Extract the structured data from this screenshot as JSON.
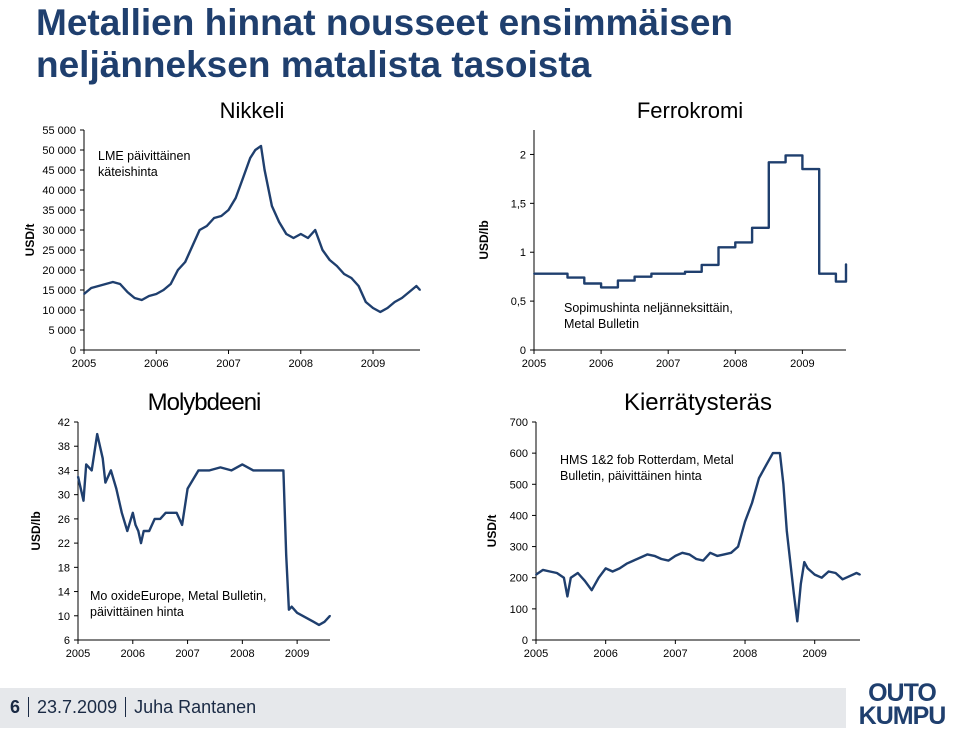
{
  "page": {
    "title_line1": "Metallien hinnat nousseet ensimmäisen",
    "title_line2": "neljänneksen matalista tasoista"
  },
  "chart_data": [
    {
      "type": "line",
      "title": "Nikkeli",
      "ylabel": "USD/t",
      "annotation": [
        "LME päivittäinen",
        "käteishinta"
      ],
      "yticks": [
        0,
        5000,
        10000,
        15000,
        20000,
        25000,
        30000,
        35000,
        40000,
        45000,
        50000,
        55000
      ],
      "ytick_labels": [
        "0",
        "5 000",
        "10 000",
        "15 000",
        "20 000",
        "25 000",
        "30 000",
        "35 000",
        "40 000",
        "45 000",
        "50 000",
        "55 000"
      ],
      "xticks": [
        "2005",
        "2006",
        "2007",
        "2008",
        "2009"
      ],
      "ylim": [
        0,
        55000
      ],
      "xlim": [
        2005.0,
        2009.65
      ],
      "color": "#1f3f6e",
      "x": [
        2005.0,
        2005.1,
        2005.2,
        2005.3,
        2005.4,
        2005.5,
        2005.6,
        2005.7,
        2005.8,
        2005.9,
        2006.0,
        2006.1,
        2006.2,
        2006.3,
        2006.4,
        2006.5,
        2006.6,
        2006.7,
        2006.8,
        2006.9,
        2007.0,
        2007.1,
        2007.2,
        2007.3,
        2007.37,
        2007.45,
        2007.5,
        2007.6,
        2007.7,
        2007.8,
        2007.9,
        2008.0,
        2008.1,
        2008.2,
        2008.3,
        2008.4,
        2008.5,
        2008.6,
        2008.7,
        2008.8,
        2008.9,
        2009.0,
        2009.1,
        2009.2,
        2009.3,
        2009.4,
        2009.5,
        2009.6,
        2009.65
      ],
      "y": [
        14000,
        15500,
        16000,
        16500,
        17000,
        16500,
        14500,
        13000,
        12500,
        13500,
        14000,
        15000,
        16500,
        20000,
        22000,
        26000,
        30000,
        31000,
        33000,
        33500,
        35000,
        38000,
        43000,
        48000,
        50000,
        51000,
        45000,
        36000,
        32000,
        29000,
        28000,
        29000,
        28000,
        30000,
        25000,
        22500,
        21000,
        19000,
        18000,
        16000,
        12000,
        10500,
        9500,
        10500,
        12000,
        13000,
        14500,
        16000,
        15000
      ]
    },
    {
      "type": "line",
      "title": "Ferrokromi",
      "ylabel": "USD/lb",
      "annotation": [
        "Sopimushinta neljänneksittäin,",
        "Metal Bulletin"
      ],
      "yticks": [
        0,
        0.5,
        1,
        1.5,
        2
      ],
      "ytick_labels": [
        "0",
        "0,5",
        "1",
        "1,5",
        "2"
      ],
      "xticks": [
        "2005",
        "2006",
        "2007",
        "2008",
        "2009"
      ],
      "ylim": [
        0,
        2.25
      ],
      "xlim": [
        2005.0,
        2009.65
      ],
      "color": "#1f3f6e",
      "step": true,
      "x": [
        2005.0,
        2005.25,
        2005.5,
        2005.75,
        2006.0,
        2006.25,
        2006.5,
        2006.75,
        2007.0,
        2007.25,
        2007.5,
        2007.75,
        2008.0,
        2008.25,
        2008.5,
        2008.75,
        2009.0,
        2009.25,
        2009.5,
        2009.65
      ],
      "y": [
        0.78,
        0.78,
        0.74,
        0.68,
        0.64,
        0.71,
        0.75,
        0.78,
        0.78,
        0.8,
        0.87,
        1.05,
        1.1,
        1.25,
        1.92,
        1.99,
        1.85,
        0.78,
        0.7,
        0.88
      ]
    },
    {
      "type": "line",
      "title": "Molybdeeni",
      "ylabel": "USD/lb",
      "annotation": [
        "Mo oxideEurope, Metal Bulletin,",
        "päivittäinen hinta"
      ],
      "yticks": [
        6,
        10,
        14,
        18,
        22,
        26,
        30,
        34,
        38,
        42
      ],
      "ytick_labels": [
        "6",
        "10",
        "14",
        "18",
        "22",
        "26",
        "30",
        "34",
        "38",
        "42"
      ],
      "xticks": [
        "2005",
        "2006",
        "2007",
        "2008",
        "2009"
      ],
      "ylim": [
        6,
        42
      ],
      "xlim": [
        2005.0,
        2009.6
      ],
      "color": "#1f3f6e",
      "x": [
        2005.0,
        2005.1,
        2005.15,
        2005.25,
        2005.35,
        2005.45,
        2005.5,
        2005.6,
        2005.7,
        2005.8,
        2005.9,
        2006.0,
        2006.05,
        2006.1,
        2006.15,
        2006.2,
        2006.3,
        2006.4,
        2006.5,
        2006.6,
        2006.7,
        2006.8,
        2006.9,
        2007.0,
        2007.2,
        2007.4,
        2007.6,
        2007.8,
        2008.0,
        2008.2,
        2008.4,
        2008.6,
        2008.75,
        2008.8,
        2008.85,
        2008.9,
        2009.0,
        2009.1,
        2009.2,
        2009.3,
        2009.4,
        2009.5,
        2009.6
      ],
      "y": [
        33,
        29,
        35,
        34,
        40,
        36,
        32,
        34,
        31,
        27,
        24,
        27,
        25,
        24,
        22,
        24,
        24,
        26,
        26,
        27,
        27,
        27,
        25,
        31,
        34,
        34,
        34.5,
        34,
        35,
        34,
        34,
        34,
        34,
        20,
        11,
        11.5,
        10.5,
        10,
        9.5,
        9,
        8.5,
        9,
        10
      ]
    },
    {
      "type": "line",
      "title": "Kierrätysteräs",
      "ylabel": "USD/t",
      "annotation": [
        "HMS 1&2 fob Rotterdam, Metal",
        "Bulletin, päivittäinen hinta"
      ],
      "yticks": [
        0,
        100,
        200,
        300,
        400,
        500,
        600,
        700
      ],
      "ytick_labels": [
        "0",
        "100",
        "200",
        "300",
        "400",
        "500",
        "600",
        "700"
      ],
      "xticks": [
        "2005",
        "2006",
        "2007",
        "2008",
        "2009"
      ],
      "ylim": [
        0,
        700
      ],
      "xlim": [
        2005.0,
        2009.65
      ],
      "color": "#1f3f6e",
      "x": [
        2005.0,
        2005.1,
        2005.2,
        2005.3,
        2005.4,
        2005.45,
        2005.5,
        2005.6,
        2005.7,
        2005.8,
        2005.9,
        2006.0,
        2006.1,
        2006.2,
        2006.3,
        2006.4,
        2006.5,
        2006.6,
        2006.7,
        2006.8,
        2006.9,
        2007.0,
        2007.1,
        2007.2,
        2007.3,
        2007.4,
        2007.5,
        2007.6,
        2007.7,
        2007.8,
        2007.9,
        2008.0,
        2008.1,
        2008.2,
        2008.3,
        2008.4,
        2008.5,
        2008.55,
        2008.6,
        2008.7,
        2008.75,
        2008.8,
        2008.85,
        2008.9,
        2009.0,
        2009.1,
        2009.2,
        2009.3,
        2009.4,
        2009.5,
        2009.6,
        2009.65
      ],
      "y": [
        210,
        225,
        220,
        215,
        200,
        140,
        200,
        215,
        190,
        160,
        200,
        230,
        220,
        230,
        245,
        255,
        265,
        275,
        270,
        260,
        255,
        270,
        280,
        275,
        260,
        255,
        280,
        270,
        275,
        280,
        300,
        380,
        440,
        520,
        560,
        600,
        600,
        500,
        350,
        150,
        60,
        180,
        250,
        230,
        210,
        200,
        220,
        215,
        195,
        205,
        215,
        210
      ]
    }
  ],
  "footer": {
    "page_number": "6",
    "date": "23.7.2009",
    "author": "Juha Rantanen",
    "logo_line1": "OUTO",
    "logo_line2": "KUMPU"
  }
}
